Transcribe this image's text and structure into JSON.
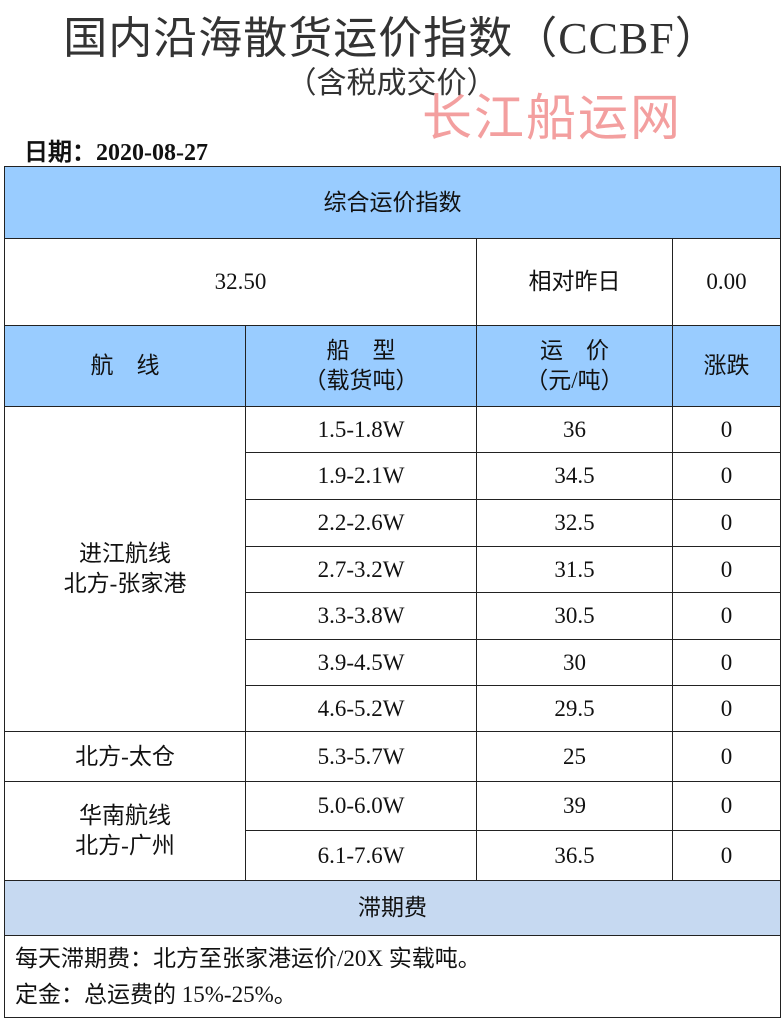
{
  "title": "国内沿海散货运价指数（CCBF）",
  "subtitle": "（含税成交价）",
  "watermark": "长江船运网",
  "date_label": "日期：2020-08-27",
  "index": {
    "header": "综合运价指数",
    "value": "32.50",
    "change_label": "相对昨日",
    "change": "0.00"
  },
  "columns": {
    "route": "航　线",
    "ship_type": "船　型",
    "ship_unit": "（载货吨）",
    "price": "运　价",
    "price_unit": "（元/吨）",
    "change": "涨跌"
  },
  "colors": {
    "header_blue": "#99ccff",
    "section_blue": "#c6d9f1",
    "watermark": "#f08080"
  },
  "groups": [
    {
      "route1": "进江航线",
      "route2": "北方-张家港",
      "rows": [
        {
          "type": "1.5-1.8W",
          "price": "36",
          "change": "0"
        },
        {
          "type": "1.9-2.1W",
          "price": "34.5",
          "change": "0"
        },
        {
          "type": "2.2-2.6W",
          "price": "32.5",
          "change": "0"
        },
        {
          "type": "2.7-3.2W",
          "price": "31.5",
          "change": "0"
        },
        {
          "type": "3.3-3.8W",
          "price": "30.5",
          "change": "0"
        },
        {
          "type": "3.9-4.5W",
          "price": "30",
          "change": "0"
        },
        {
          "type": "4.6-5.2W",
          "price": "29.5",
          "change": "0"
        }
      ]
    },
    {
      "route1": "北方-太仓",
      "rows": [
        {
          "type": "5.3-5.7W",
          "price": "25",
          "change": "0"
        }
      ]
    },
    {
      "route1": "华南航线",
      "route2": "北方-广州",
      "rows": [
        {
          "type": "5.0-6.0W",
          "price": "39",
          "change": "0"
        },
        {
          "type": "6.1-7.6W",
          "price": "36.5",
          "change": "0"
        }
      ]
    }
  ],
  "demurrage": {
    "header": "滞期费",
    "line1": "每天滞期费：北方至张家港运价/20X 实载吨。",
    "line2": "定金：总运费的 15%-25%。"
  }
}
